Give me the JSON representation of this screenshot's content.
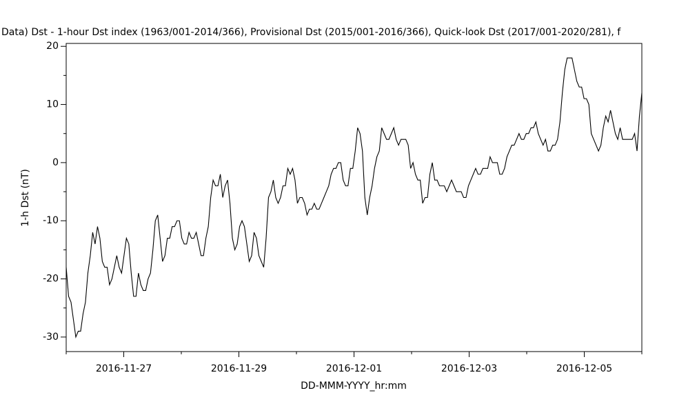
{
  "chart_data": {
    "type": "line",
    "title": "Data)  Dst - 1-hour Dst index (1963/001-2014/366), Provisional Dst (2015/001-2016/366), Quick-look Dst (2017/001-2020/281), f",
    "x_label": "DD-MMM-YYYY_hr:mm",
    "y_label": "1-h Dst (nT)",
    "xlim": [
      "2016-11-26",
      "2016-12-06"
    ],
    "xticks": [
      "2016-11-27",
      "2016-11-29",
      "2016-12-01",
      "2016-12-03",
      "2016-12-05"
    ],
    "ylim": [
      -32.5,
      20.5
    ],
    "yticks": [
      20,
      10,
      0,
      -10,
      -20,
      -30
    ],
    "color": "#000000",
    "series": [
      {
        "name": "1-h Dst",
        "color": "#000000",
        "values": [
          -18,
          -23,
          -24,
          -27,
          -30,
          -29,
          -29,
          -26,
          -24,
          -19,
          -16,
          -12,
          -14,
          -11,
          -13,
          -17,
          -18,
          -18,
          -21,
          -20,
          -18,
          -16,
          -18,
          -19,
          -16,
          -13,
          -14,
          -19,
          -23,
          -23,
          -19,
          -21,
          -22,
          -22,
          -20,
          -19,
          -15,
          -10,
          -9,
          -13,
          -17,
          -16,
          -13,
          -13,
          -11,
          -11,
          -10,
          -10,
          -13,
          -14,
          -14,
          -12,
          -13,
          -13,
          -12,
          -14,
          -16,
          -16,
          -13,
          -11,
          -6,
          -3,
          -4,
          -4,
          -2,
          -6,
          -4,
          -3,
          -7,
          -13,
          -15,
          -14,
          -11,
          -10,
          -11,
          -14,
          -17,
          -16,
          -12,
          -13,
          -16,
          -17,
          -18,
          -13,
          -6,
          -5,
          -3,
          -6,
          -7,
          -6,
          -4,
          -4,
          -1,
          -2,
          -1,
          -3,
          -7,
          -6,
          -6,
          -7,
          -9,
          -8,
          -8,
          -7,
          -8,
          -8,
          -7,
          -6,
          -5,
          -4,
          -2,
          -1,
          -1,
          0,
          0,
          -3,
          -4,
          -4,
          -1,
          -1,
          2,
          6,
          5,
          2,
          -6,
          -9,
          -6,
          -4,
          -1,
          1,
          2,
          6,
          5,
          4,
          4,
          5,
          6,
          4,
          3,
          4,
          4,
          4,
          3,
          -1,
          0,
          -2,
          -3,
          -3,
          -7,
          -6,
          -6,
          -2,
          0,
          -3,
          -3,
          -4,
          -4,
          -4,
          -5,
          -4,
          -3,
          -4,
          -5,
          -5,
          -5,
          -6,
          -6,
          -4,
          -3,
          -2,
          -1,
          -2,
          -2,
          -1,
          -1,
          -1,
          1,
          0,
          0,
          0,
          -2,
          -2,
          -1,
          1,
          2,
          3,
          3,
          4,
          5,
          4,
          4,
          5,
          5,
          6,
          6,
          7,
          5,
          4,
          3,
          4,
          2,
          2,
          3,
          3,
          4,
          7,
          12,
          16,
          18,
          18,
          18,
          16,
          14,
          13,
          13,
          11,
          11,
          10,
          5,
          4,
          3,
          2,
          3,
          6,
          8,
          7,
          9,
          7,
          5,
          4,
          6,
          4,
          4,
          4,
          4,
          4,
          5,
          2,
          8,
          12
        ]
      }
    ],
    "grid": false
  }
}
